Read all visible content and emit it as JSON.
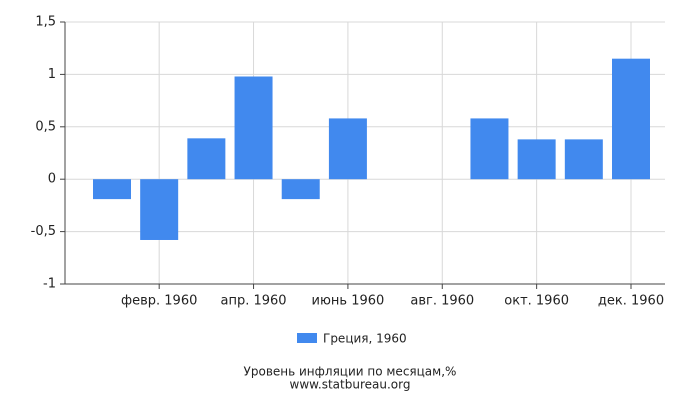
{
  "chart_data": {
    "type": "bar",
    "categories": [
      null,
      "февр. 1960",
      null,
      "апр. 1960",
      null,
      "июнь 1960",
      null,
      "авг. 1960",
      null,
      "окт. 1960",
      null,
      "дек. 1960"
    ],
    "series": [
      {
        "name": "Греция, 1960",
        "color": "#4189ee",
        "values": [
          -0.19,
          -0.58,
          0.39,
          0.98,
          -0.19,
          0.58,
          0,
          0,
          0.58,
          0.38,
          0.38,
          1.15
        ]
      }
    ],
    "ylim": [
      -1,
      1.5
    ],
    "yticks": [
      -1,
      {
        "value": -0.5,
        "label": "-0,5"
      },
      0,
      {
        "value": 0.5,
        "label": "0,5"
      },
      1,
      {
        "value": 1.5,
        "label": "1,5"
      }
    ],
    "grid": true,
    "xlabel": "Уровень инфляции по месяцам,%",
    "source": "www.statbureau.org"
  }
}
